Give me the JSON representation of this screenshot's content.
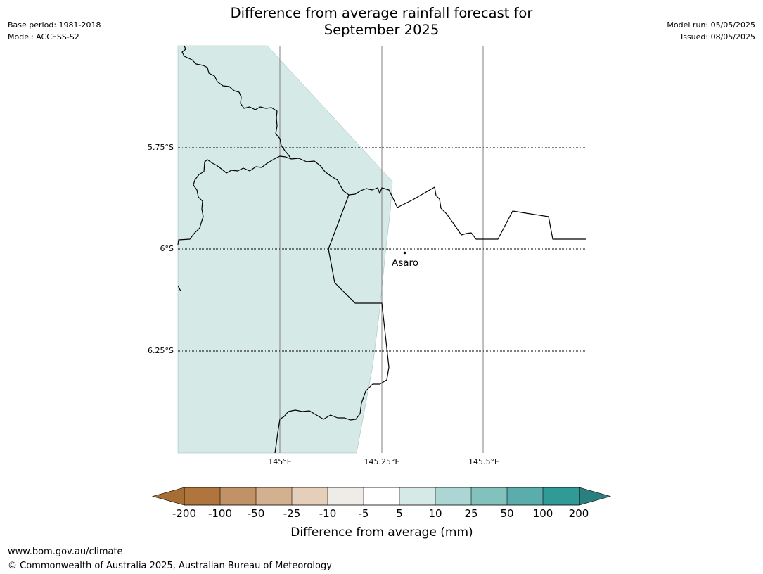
{
  "header": {
    "title_line1": "Difference from average rainfall forecast for",
    "title_line2": "September 2025",
    "base_period": "Base period: 1981-2018",
    "model": "Model: ACCESS-S2",
    "model_run": "Model run: 05/05/2025",
    "issued": "Issued: 08/05/2025"
  },
  "map": {
    "lat_labels": [
      "5.75°S",
      "6°S",
      "6.25°S"
    ],
    "lon_labels": [
      "145°E",
      "145.25°E",
      "145.5°E"
    ],
    "place": {
      "name": "Asaro"
    },
    "fill_color": "#d5e9e7"
  },
  "colorbar": {
    "labels": [
      "-200",
      "-100",
      "-50",
      "-25",
      "-10",
      "-5",
      "5",
      "10",
      "25",
      "50",
      "100",
      "200"
    ],
    "colors": [
      "#a66d35",
      "#b0743d",
      "#c29267",
      "#d3b08f",
      "#e5cfbb",
      "#efebe7",
      "#ffffff",
      "#d5e9e7",
      "#acd6d4",
      "#83c1bd",
      "#5aadaa",
      "#309a97",
      "#2b7f7c"
    ],
    "title": "Difference from average (mm)"
  },
  "footer": {
    "url": "www.bom.gov.au/climate",
    "copyright": "© Commonwealth of Australia 2025, Australian Bureau of Meteorology"
  }
}
